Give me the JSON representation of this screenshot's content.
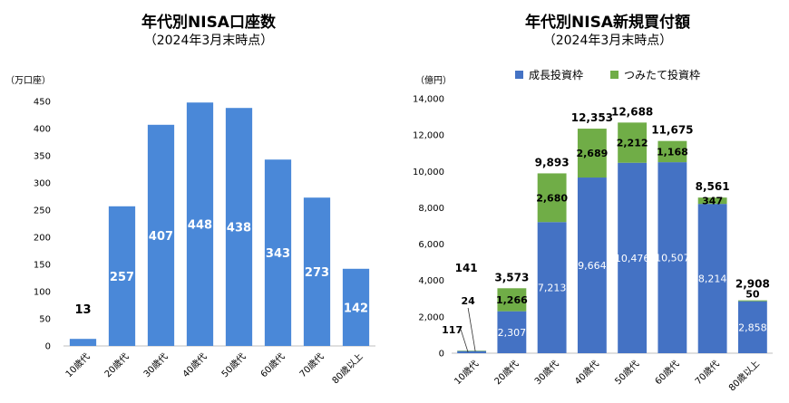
{
  "chart_data": [
    {
      "type": "bar",
      "title": "年代別NISA口座数",
      "subtitle": "（2024年3月末時点）",
      "ylabel": "（万口座）",
      "categories": [
        "10歳代",
        "20歳代",
        "30歳代",
        "40歳代",
        "50歳代",
        "60歳代",
        "70歳代",
        "80歳以上"
      ],
      "values": [
        13,
        257,
        407,
        448,
        438,
        343,
        273,
        142
      ],
      "value_labels": [
        "13",
        "257",
        "407",
        "448",
        "438",
        "343",
        "273",
        "142"
      ],
      "ylim": [
        0,
        450
      ],
      "yticks": [
        0,
        50,
        100,
        150,
        200,
        250,
        300,
        350,
        400,
        450
      ],
      "ytick_labels": [
        "0",
        "50",
        "100",
        "150",
        "200",
        "250",
        "300",
        "350",
        "400",
        "450"
      ],
      "grid": false,
      "color": "#4a88d8"
    },
    {
      "type": "bar",
      "stacked": true,
      "title": "年代別NISA新規買付額",
      "subtitle": "（2024年3月末時点）",
      "ylabel": "（億円）",
      "categories": [
        "10歳代",
        "20歳代",
        "30歳代",
        "40歳代",
        "50歳代",
        "60歳代",
        "70歳代",
        "80歳以上"
      ],
      "legend_position": "top",
      "ylim": [
        0,
        14000
      ],
      "yticks": [
        0,
        2000,
        4000,
        6000,
        8000,
        10000,
        12000,
        14000
      ],
      "ytick_labels": [
        "0",
        "2,000",
        "4,000",
        "6,000",
        "8,000",
        "10,000",
        "12,000",
        "14,000"
      ],
      "grid": false,
      "series": [
        {
          "name": "成長投資枠",
          "color": "#4472c4",
          "values": [
            117,
            2307,
            7213,
            9664,
            10476,
            10507,
            8214,
            2858
          ],
          "labels": [
            "117",
            "2,307",
            "7,213",
            "9,664",
            "10,476",
            "10,507",
            "8,214",
            "2,858"
          ]
        },
        {
          "name": "つみたて投資枠",
          "color": "#70ad47",
          "values": [
            24,
            1266,
            2680,
            2689,
            2212,
            1168,
            347,
            50
          ],
          "labels": [
            "24",
            "1,266",
            "2,680",
            "2,689",
            "2,212",
            "1,168",
            "347",
            "50"
          ]
        }
      ],
      "totals": [
        141,
        3573,
        9893,
        12353,
        12688,
        11675,
        8561,
        2908
      ],
      "total_labels": [
        "141",
        "3,573",
        "9,893",
        "12,353",
        "12,688",
        "11,675",
        "8,561",
        "2,908"
      ]
    }
  ]
}
